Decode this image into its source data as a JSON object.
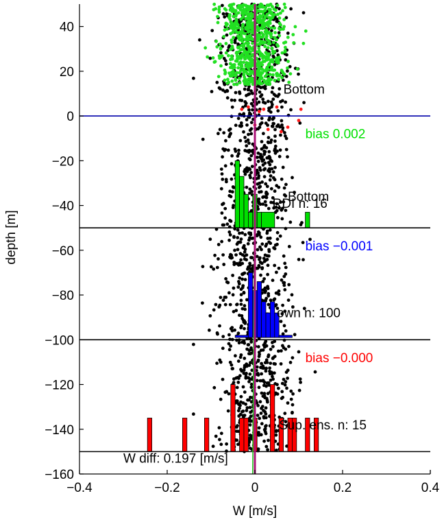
{
  "chart_data": {
    "type": "scatter",
    "title": "",
    "xlabel": "W [m/s]",
    "ylabel": "depth [m]",
    "xlim": [
      -0.4,
      0.4
    ],
    "ylim": [
      -160,
      50
    ],
    "xticks": [
      -0.4,
      -0.2,
      0,
      0.2,
      0.4
    ],
    "xtick_labels": [
      "−0.4",
      "−0.2",
      "0",
      "0.2",
      "0.4"
    ],
    "yticks": [
      40,
      20,
      0,
      -20,
      -40,
      -60,
      -80,
      -100,
      -120,
      -140,
      -160
    ],
    "ytick_labels": [
      "40",
      "20",
      "0",
      "−20",
      "−40",
      "−60",
      "−80",
      "−100",
      "−120",
      "−140",
      "−160"
    ],
    "grid": false,
    "colors": {
      "upper_points": "#22e022",
      "deep_points": "#000000",
      "red_points": "#ff1a1a",
      "green_hist": "#00e000",
      "blue_hist": "#0000ff",
      "red_hist": "#ff0000",
      "surface_line": "#0000aa",
      "bias_red": "#ff0000",
      "bias_green": "#00e000",
      "bias_blue": "#0000ff",
      "mean_line": "#aa1177"
    },
    "scatter_clusters": [
      {
        "name": "",
        "color": "#22e022",
        "x_center": -0.003,
        "x_std": 0.035,
        "y_range": [
          14,
          50
        ],
        "count": 700
      },
      {
        "name": "",
        "color": "#000000",
        "x_center": 0.0,
        "x_std": 0.042,
        "y_range": [
          -150,
          50
        ],
        "count": 1500
      }
    ],
    "red_points": [
      {
        "x": -0.03,
        "y": 3
      },
      {
        "x": -0.015,
        "y": 4
      },
      {
        "x": 0.01,
        "y": 2
      },
      {
        "x": 0.02,
        "y": 3
      },
      {
        "x": 0.05,
        "y": 4
      },
      {
        "x": 0.105,
        "y": 3
      },
      {
        "x": 0.06,
        "y": -7
      },
      {
        "x": 0.075,
        "y": -5
      },
      {
        "x": 0.1,
        "y": -2
      },
      {
        "x": 0.0,
        "y": -4
      },
      {
        "x": 0.03,
        "y": -6
      }
    ],
    "horizontal_lines": [
      {
        "y": 0,
        "color": "#0000aa"
      },
      {
        "y": -50,
        "color": "#000000"
      },
      {
        "y": -100,
        "color": "#000000"
      },
      {
        "y": -150,
        "color": "#000000"
      }
    ],
    "vertical_lines": [
      {
        "x_top": 0.003,
        "x_bottom": -0.005,
        "y_top": 50,
        "y_bottom": -160,
        "color": "#22c822"
      },
      {
        "x_top": 0.0,
        "x_bottom": 0.0,
        "y_top": 50,
        "y_bottom": -160,
        "color": "#aa1177"
      }
    ],
    "histograms": [
      {
        "name": "",
        "color": "#00e000",
        "base_y": -50,
        "bars": [
          {
            "x0": -0.045,
            "x1": -0.035,
            "top": -20
          },
          {
            "x0": -0.035,
            "x1": -0.025,
            "top": -27
          },
          {
            "x0": -0.025,
            "x1": -0.015,
            "top": -35
          },
          {
            "x0": -0.015,
            "x1": -0.005,
            "top": -43
          },
          {
            "x0": -0.005,
            "x1": 0.005,
            "top": -35
          },
          {
            "x0": 0.005,
            "x1": 0.015,
            "top": -43
          },
          {
            "x0": 0.015,
            "x1": 0.045,
            "top": -43
          },
          {
            "x0": 0.115,
            "x1": 0.125,
            "top": -43
          }
        ]
      },
      {
        "name": "",
        "color": "#0000ff",
        "base_y": -99,
        "bars": [
          {
            "x0": -0.045,
            "x1": -0.015,
            "top": -98
          },
          {
            "x0": -0.015,
            "x1": -0.005,
            "top": -70
          },
          {
            "x0": -0.005,
            "x1": 0.005,
            "top": -78
          },
          {
            "x0": 0.005,
            "x1": 0.015,
            "top": -74
          },
          {
            "x0": 0.015,
            "x1": 0.025,
            "top": -83
          },
          {
            "x0": 0.025,
            "x1": 0.035,
            "top": -88
          },
          {
            "x0": 0.035,
            "x1": 0.045,
            "top": -83
          },
          {
            "x0": 0.045,
            "x1": 0.055,
            "top": -88
          },
          {
            "x0": 0.055,
            "x1": 0.085,
            "top": -98
          }
        ]
      },
      {
        "name": "",
        "color": "#ff0000",
        "base_y": -150,
        "bars": [
          {
            "x0": -0.245,
            "x1": -0.235,
            "top": -135
          },
          {
            "x0": -0.165,
            "x1": -0.155,
            "top": -135
          },
          {
            "x0": -0.115,
            "x1": -0.105,
            "top": -135
          },
          {
            "x0": -0.055,
            "x1": -0.045,
            "top": -120
          },
          {
            "x0": -0.035,
            "x1": -0.025,
            "top": -135
          },
          {
            "x0": -0.025,
            "x1": -0.015,
            "top": -135
          },
          {
            "x0": -0.005,
            "x1": 0.005,
            "top": -135
          },
          {
            "x0": 0.035,
            "x1": 0.045,
            "top": -120
          },
          {
            "x0": 0.055,
            "x1": 0.065,
            "top": -135
          },
          {
            "x0": 0.075,
            "x1": 0.085,
            "top": -135
          },
          {
            "x0": 0.085,
            "x1": 0.095,
            "top": -135
          },
          {
            "x0": 0.115,
            "x1": 0.125,
            "top": -135
          },
          {
            "x0": 0.135,
            "x1": 0.145,
            "top": -135
          }
        ]
      }
    ],
    "annotations": [
      {
        "text": "Bottom",
        "x": 0.065,
        "y": 10,
        "color": "#000000"
      },
      {
        "text": "bias  0.002",
        "x": 0.115,
        "y": -10,
        "color": "#00e000"
      },
      {
        "text": "RDI n: 16",
        "x": 0.04,
        "y": -41,
        "color": "#000000"
      },
      {
        "text": "Bottom",
        "x": 0.075,
        "y": -38,
        "color": "#000000"
      },
      {
        "text": "bias −0.001",
        "x": 0.115,
        "y": -60,
        "color": "#0000ff"
      },
      {
        "text": "own n: 100",
        "x": 0.05,
        "y": -90,
        "color": "#000000"
      },
      {
        "text": "bias −0.000",
        "x": 0.115,
        "y": -110,
        "color": "#ff0000"
      },
      {
        "text": "Sup. ens. n: 15",
        "x": 0.055,
        "y": -140,
        "color": "#000000"
      },
      {
        "text": "W diff:  0.197 [m/s]",
        "x": -0.3,
        "y": -155,
        "color": "#000000"
      }
    ]
  }
}
